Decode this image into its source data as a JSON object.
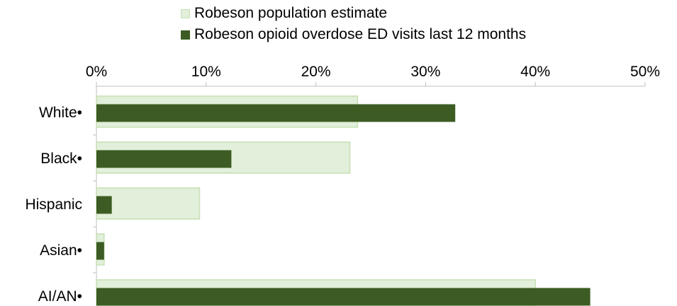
{
  "chart_data": {
    "type": "bar",
    "orientation": "horizontal",
    "categories": [
      "White•",
      "Black•",
      "Hispanic",
      "Asian•",
      "AI/AN•"
    ],
    "series": [
      {
        "name": "Robeson population estimate",
        "values": [
          23.8,
          23.1,
          9.4,
          0.7,
          40.0
        ],
        "color": "#e2efda",
        "stroke": "#c5e0b4"
      },
      {
        "name": "Robeson opioid overdose ED visits last 12 months",
        "values": [
          32.7,
          12.3,
          1.4,
          0.7,
          45.0
        ],
        "color": "#3d5c23"
      }
    ],
    "xlim": [
      0,
      50
    ],
    "xticks": [
      0,
      10,
      20,
      30,
      40,
      50
    ],
    "tick_format": "percent",
    "axis_position": "top",
    "grid": false,
    "legend_position": "top"
  }
}
